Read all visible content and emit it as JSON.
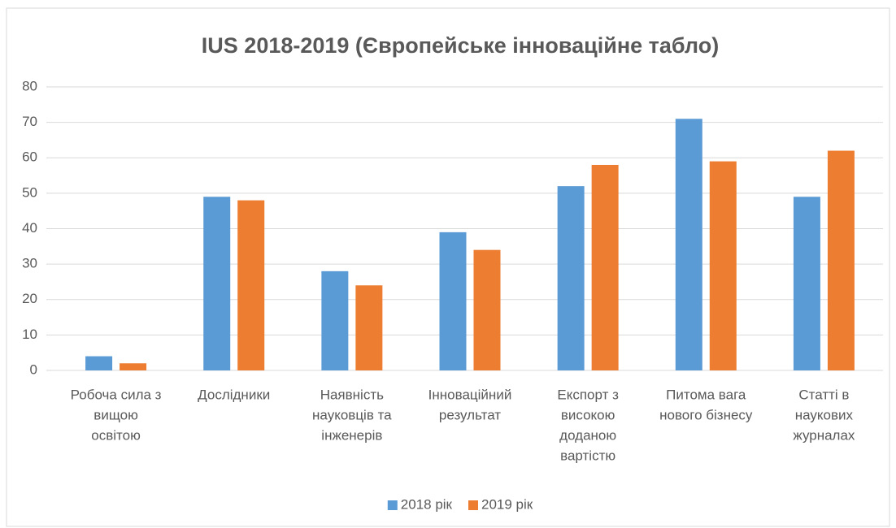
{
  "chart_data": {
    "type": "bar",
    "title": "IUS 2018-2019 (Європейське інноваційне табло)",
    "categories": [
      [
        "Робоча сила з",
        "вищою",
        "освітою"
      ],
      [
        "Дослідники"
      ],
      [
        "Наявність",
        "науковців та",
        "інженерів"
      ],
      [
        "Інноваційний",
        "результат"
      ],
      [
        "Експорт з",
        "високою",
        "доданою",
        "вартістю"
      ],
      [
        "Питома вага",
        "нового бізнесу"
      ],
      [
        "Статті в",
        "наукових",
        "журналах"
      ]
    ],
    "series": [
      {
        "name": "2018 рік",
        "color": "#5b9bd5",
        "values": [
          4,
          49,
          28,
          39,
          52,
          71,
          49
        ]
      },
      {
        "name": "2019 рік",
        "color": "#ed7d31",
        "values": [
          2,
          48,
          24,
          34,
          58,
          59,
          62
        ]
      }
    ],
    "ylim": [
      0,
      80
    ],
    "yticks": [
      0,
      10,
      20,
      30,
      40,
      50,
      60,
      70,
      80
    ],
    "grid": true,
    "legend": "bottom"
  }
}
